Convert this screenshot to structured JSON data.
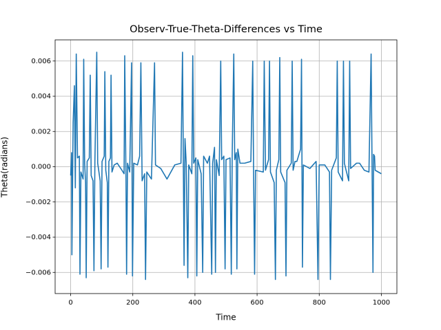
{
  "chart_data": {
    "type": "line",
    "title": "Observ-True-Theta-Differences vs Time",
    "x_label": "Time",
    "y_label": "Theta(radians)",
    "color": "#1f77b4",
    "grid": true,
    "xlim": [
      -50,
      1050
    ],
    "ylim": [
      -0.0072,
      0.0072
    ],
    "xticks": [
      0,
      200,
      400,
      600,
      800,
      1000
    ],
    "yticks": [
      {
        "value": -0.006,
        "label": "−0.006"
      },
      {
        "value": -0.004,
        "label": "−0.004"
      },
      {
        "value": -0.002,
        "label": "−0.002"
      },
      {
        "value": 0,
        "label": "0.000"
      },
      {
        "value": 0.002,
        "label": "0.002"
      },
      {
        "value": 0.004,
        "label": "0.004"
      },
      {
        "value": 0.006,
        "label": "0.006"
      }
    ],
    "x": [
      0,
      3,
      4,
      8,
      12,
      15,
      18,
      22,
      28,
      30,
      33,
      40,
      42,
      45,
      48,
      50,
      53,
      60,
      63,
      66,
      72,
      75,
      78,
      84,
      87,
      95,
      98,
      101,
      108,
      110,
      113,
      118,
      120,
      123,
      128,
      130,
      133,
      140,
      150,
      165,
      172,
      174,
      178,
      180,
      183,
      190,
      196,
      199,
      203,
      215,
      222,
      226,
      230,
      238,
      241,
      245,
      260,
      270,
      273,
      290,
      310,
      335,
      355,
      360,
      363,
      365,
      368,
      372,
      377,
      380,
      390,
      393,
      396,
      403,
      406,
      409,
      420,
      425,
      428,
      440,
      447,
      454,
      457,
      463,
      466,
      469,
      478,
      483,
      486,
      493,
      497,
      500,
      513,
      517,
      520,
      525,
      528,
      533,
      535,
      538,
      545,
      560,
      580,
      586,
      589,
      592,
      595,
      620,
      623,
      627,
      637,
      640,
      643,
      655,
      659,
      662,
      670,
      673,
      676,
      690,
      693,
      696,
      710,
      713,
      716,
      722,
      728,
      740,
      743,
      746,
      749,
      770,
      790,
      796,
      800,
      818,
      833,
      836,
      840,
      855,
      858,
      861,
      875,
      878,
      881,
      885,
      895,
      898,
      901,
      920,
      930,
      945,
      960,
      967,
      970,
      973,
      975,
      978,
      980,
      1000
    ],
    "values": [
      -0.0005,
      0.0008,
      -0.005,
      0.0025,
      0.0046,
      -0.0012,
      0.0064,
      0.0005,
      0.0006,
      -0.0061,
      -0.0003,
      -0.0007,
      0.0061,
      0.0002,
      -0.0009,
      -0.0063,
      0.0003,
      0.0005,
      0.0052,
      -0.0005,
      -0.0008,
      -0.0059,
      0.0003,
      0.0065,
      0.0002,
      -0.0008,
      -0.0058,
      0.0003,
      0.0006,
      0.0054,
      -0.0002,
      -0.0009,
      -0.0057,
      0.0003,
      0.0005,
      0.0052,
      -0.0003,
      0.0001,
      0.0002,
      -0.0002,
      -0.0004,
      0.0063,
      -0.0006,
      -0.0061,
      0.0002,
      -0.0003,
      0.0059,
      -0.0062,
      0.0002,
      0.0001,
      0.0006,
      0.0059,
      -0.0008,
      -0.0004,
      -0.0064,
      -0.0003,
      -0.0007,
      0.0059,
      0.0001,
      -0.0001,
      -0.0007,
      0.0001,
      0.0002,
      0.0065,
      -0.0007,
      -0.0056,
      0.0016,
      0.0002,
      -0.0063,
      0.0001,
      -0.0004,
      0.0063,
      0.0002,
      0.0005,
      -0.0062,
      0.0004,
      -0.0004,
      -0.006,
      0.0006,
      0.0002,
      0.0006,
      -0.0061,
      0.0002,
      0.0011,
      -0.006,
      0.0004,
      -0.0005,
      0.006,
      0.0004,
      0.0006,
      -0.0058,
      0.0004,
      0.0005,
      -0.0061,
      0.0008,
      0.0064,
      0.0004,
      0.0008,
      -0.0058,
      0.001,
      0.0002,
      0.0002,
      0.0003,
      0.006,
      -0.0008,
      -0.0061,
      -0.0002,
      -0.0003,
      0.006,
      -0.0002,
      0.0004,
      0.006,
      -0.0003,
      -0.0009,
      -0.0064,
      -0.0002,
      0.0004,
      0.0062,
      -0.0003,
      -0.0009,
      -0.0062,
      -0.0002,
      0.0002,
      0.006,
      -0.0002,
      0.0003,
      0.0003,
      0.001,
      0.0061,
      -0.0057,
      0.0001,
      -0.0001,
      0.0003,
      -0.0064,
      0.0001,
      0.0001,
      -0.0003,
      -0.0064,
      -0.0002,
      0.0005,
      0.006,
      -0.0003,
      -0.0008,
      0.006,
      0.0002,
      -0.0001,
      -0.0008,
      0.006,
      -0.0001,
      0.0002,
      0.0002,
      -0.0002,
      -0.0003,
      0.0064,
      0.0001,
      -0.006,
      0.0007,
      0.0006,
      -0.0002,
      -0.0004
    ]
  }
}
